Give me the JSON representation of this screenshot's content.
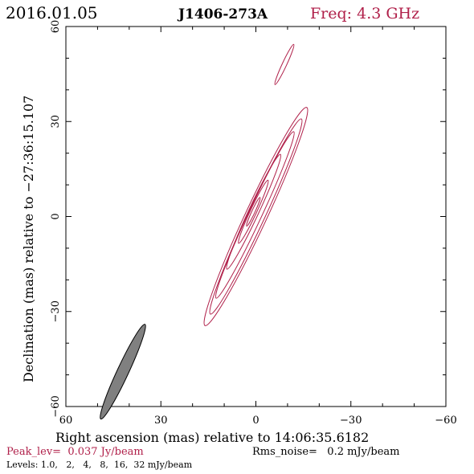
{
  "header": {
    "date": "2016.01.05",
    "source": "J1406-273A",
    "freq": "Freq: 4.3 GHz"
  },
  "footer": {
    "peak_lev": "Peak_lev=  0.037 Jy/beam",
    "rms_noise": "Rms_noise=   0.2 mJy/beam",
    "levels": "Levels: 1.0,   2,   4,   8,  16,  32 mJy/beam"
  },
  "colors": {
    "accent": "#b0204a",
    "beam_fill": "#808080",
    "axis": "#000000"
  },
  "chart_data": {
    "type": "contour",
    "title": "J1406-273A",
    "xlabel": "Right ascension (mas) relative to 14:06:35.6182",
    "ylabel": "Declination (mas) relative to −27:36:15.107",
    "xlim": [
      60,
      -60
    ],
    "ylim": [
      -60,
      60
    ],
    "xticks": [
      {
        "value": 60,
        "label": "60"
      },
      {
        "value": 30,
        "label": "30"
      },
      {
        "value": 0,
        "label": "0"
      },
      {
        "value": -30,
        "label": "−30"
      },
      {
        "value": -60,
        "label": "−60"
      }
    ],
    "yticks": [
      {
        "value": -60,
        "label": "−60"
      },
      {
        "value": -30,
        "label": "−30"
      },
      {
        "value": 0,
        "label": "0"
      },
      {
        "value": 30,
        "label": "30"
      },
      {
        "value": 60,
        "label": "60"
      }
    ],
    "contours": [
      {
        "level_mJy": 1.0,
        "cx": 0,
        "cy": 0,
        "major": 38,
        "minor": 3.4,
        "pa_deg": 25
      },
      {
        "level_mJy": 2,
        "cx": 0,
        "cy": 0,
        "major": 34,
        "minor": 2.7,
        "pa_deg": 25
      },
      {
        "level_mJy": 4,
        "cx": 0.3,
        "cy": 0.5,
        "major": 29,
        "minor": 2.1,
        "pa_deg": 25
      },
      {
        "level_mJy": 8,
        "cx": 0.7,
        "cy": 1.5,
        "major": 20,
        "minor": 1.6,
        "pa_deg": 25
      },
      {
        "level_mJy": 16,
        "cx": 0.8,
        "cy": 1.5,
        "major": 11,
        "minor": 1.0,
        "pa_deg": 25
      },
      {
        "level_mJy": 32,
        "cx": 0.8,
        "cy": 1.5,
        "major": 5,
        "minor": 0.5,
        "pa_deg": 25
      },
      {
        "level_mJy": 1.0,
        "cx": -9,
        "cy": 48,
        "major": 7,
        "minor": 0.7,
        "pa_deg": 25
      }
    ],
    "beam": {
      "cx": 42,
      "cy": -49,
      "major": 16.5,
      "minor": 1.8,
      "pa_deg": 25
    }
  }
}
